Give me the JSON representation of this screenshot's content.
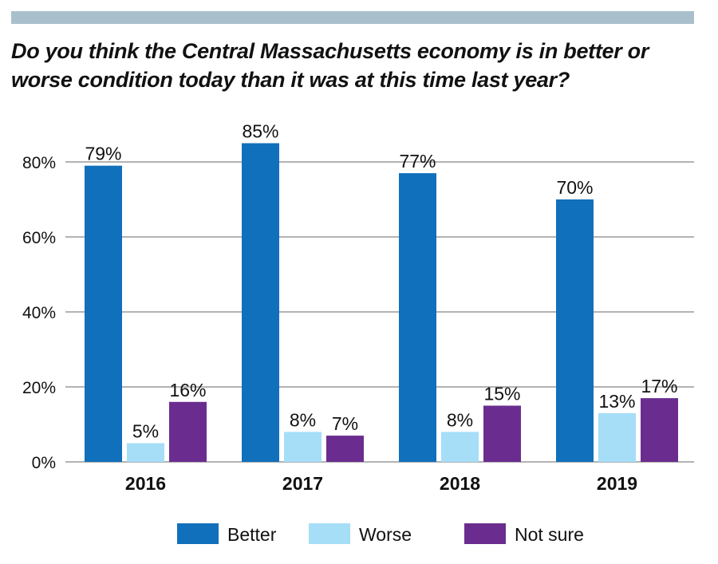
{
  "title": "Do you think the Central Massachusetts economy is in better or worse condition today than it was at this time last year?",
  "chart_data": {
    "type": "bar",
    "title": "Do you think the Central Massachusetts economy is in better or worse condition today than it was at this time last year?",
    "categories": [
      "2016",
      "2017",
      "2018",
      "2019"
    ],
    "series": [
      {
        "name": "Better",
        "values": [
          79,
          85,
          77,
          70
        ],
        "color": "#1170bb"
      },
      {
        "name": "Worse",
        "values": [
          5,
          8,
          8,
          13
        ],
        "color": "#a6def8"
      },
      {
        "name": "Not sure",
        "values": [
          16,
          7,
          15,
          17
        ],
        "color": "#6a2d8f"
      }
    ],
    "value_suffix": "%",
    "ylim": [
      0,
      80
    ],
    "y_ticks": [
      "0%",
      "20%",
      "40%",
      "60%",
      "80%"
    ],
    "y_tick_values": [
      0,
      20,
      40,
      60,
      80
    ],
    "grid": true,
    "legend_position": "bottom-center",
    "xlabel": "",
    "ylabel": ""
  }
}
